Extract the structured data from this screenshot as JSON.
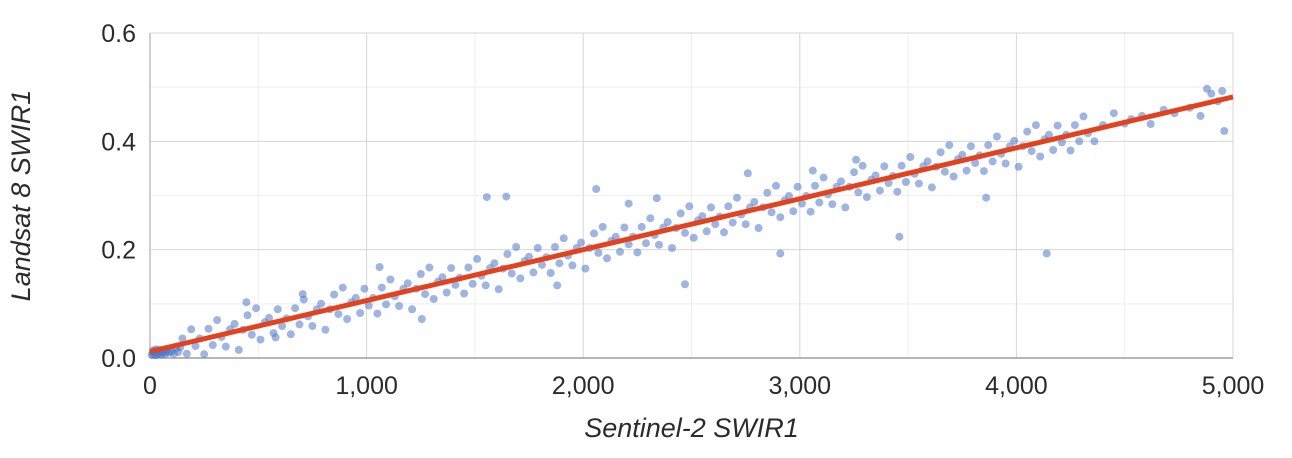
{
  "chart_data": {
    "type": "scatter",
    "title": "",
    "x_axis": {
      "title": "Sentinel-2 SWIR1",
      "min": 0,
      "max": 5000,
      "tick_values": [
        0,
        1000,
        2000,
        3000,
        4000,
        5000
      ],
      "tick_labels": [
        "0",
        "1,000",
        "2,000",
        "3,000",
        "4,000",
        "5,000"
      ],
      "minor_tick_values": [
        500,
        1500,
        2500,
        3500,
        4500
      ]
    },
    "y_axis": {
      "title": "Landsat 8 SWIR1",
      "min": 0,
      "max": 0.6,
      "tick_values": [
        0,
        0.2,
        0.4,
        0.6
      ],
      "tick_labels": [
        "0.0",
        "0.2",
        "0.4",
        "0.6"
      ],
      "minor_tick_values": [
        0.1,
        0.3,
        0.5
      ]
    },
    "grid": "on",
    "legend": "none",
    "colors": {
      "point": "#5079c9",
      "point_opacity": 0.55,
      "trend": "#e2431e",
      "grid_major": "#d6d6d6",
      "grid_minor": "#eeeeee",
      "axis_line": "#9e9e9e",
      "text": "#2b2b2b"
    },
    "trend_line": {
      "start": [
        0,
        0.012
      ],
      "end": [
        5000,
        0.482
      ]
    },
    "points": [
      [
        8,
        0.006
      ],
      [
        12,
        0.01
      ],
      [
        15,
        0.014
      ],
      [
        18,
        0.008
      ],
      [
        22,
        0.012
      ],
      [
        25,
        0.005
      ],
      [
        28,
        0.016
      ],
      [
        32,
        0.01
      ],
      [
        35,
        0.007
      ],
      [
        38,
        0.013
      ],
      [
        42,
        0.009
      ],
      [
        45,
        0.015
      ],
      [
        50,
        0.006
      ],
      [
        55,
        0.012
      ],
      [
        60,
        0.009
      ],
      [
        65,
        0.014
      ],
      [
        70,
        0.007
      ],
      [
        75,
        0.011
      ],
      [
        80,
        0.016
      ],
      [
        90,
        0.01
      ],
      [
        100,
        0.013
      ],
      [
        110,
        0.008
      ],
      [
        120,
        0.018
      ],
      [
        130,
        0.011
      ],
      [
        140,
        0.02
      ],
      [
        150,
        0.036
      ],
      [
        170,
        0.008
      ],
      [
        190,
        0.053
      ],
      [
        210,
        0.022
      ],
      [
        230,
        0.036
      ],
      [
        250,
        0.007
      ],
      [
        270,
        0.054
      ],
      [
        290,
        0.024
      ],
      [
        310,
        0.07
      ],
      [
        330,
        0.039
      ],
      [
        350,
        0.021
      ],
      [
        370,
        0.053
      ],
      [
        390,
        0.063
      ],
      [
        410,
        0.015
      ],
      [
        430,
        0.052
      ],
      [
        450,
        0.079
      ],
      [
        470,
        0.043
      ],
      [
        490,
        0.092
      ],
      [
        510,
        0.034
      ],
      [
        530,
        0.066
      ],
      [
        550,
        0.074
      ],
      [
        570,
        0.046
      ],
      [
        590,
        0.09
      ],
      [
        610,
        0.059
      ],
      [
        630,
        0.073
      ],
      [
        650,
        0.044
      ],
      [
        670,
        0.092
      ],
      [
        690,
        0.062
      ],
      [
        710,
        0.108
      ],
      [
        730,
        0.077
      ],
      [
        750,
        0.059
      ],
      [
        770,
        0.09
      ],
      [
        790,
        0.1
      ],
      [
        810,
        0.052
      ],
      [
        830,
        0.09
      ],
      [
        850,
        0.117
      ],
      [
        870,
        0.081
      ],
      [
        890,
        0.13
      ],
      [
        910,
        0.072
      ],
      [
        930,
        0.103
      ],
      [
        950,
        0.111
      ],
      [
        970,
        0.083
      ],
      [
        990,
        0.128
      ],
      [
        1010,
        0.097
      ],
      [
        1030,
        0.111
      ],
      [
        1050,
        0.082
      ],
      [
        1070,
        0.13
      ],
      [
        1090,
        0.099
      ],
      [
        1110,
        0.145
      ],
      [
        1130,
        0.114
      ],
      [
        1150,
        0.096
      ],
      [
        1170,
        0.128
      ],
      [
        1190,
        0.138
      ],
      [
        1210,
        0.09
      ],
      [
        1230,
        0.128
      ],
      [
        1250,
        0.155
      ],
      [
        1270,
        0.118
      ],
      [
        1290,
        0.167
      ],
      [
        1310,
        0.109
      ],
      [
        1330,
        0.141
      ],
      [
        1350,
        0.149
      ],
      [
        1370,
        0.121
      ],
      [
        1390,
        0.166
      ],
      [
        1410,
        0.135
      ],
      [
        1430,
        0.148
      ],
      [
        1450,
        0.119
      ],
      [
        1470,
        0.167
      ],
      [
        1490,
        0.137
      ],
      [
        1510,
        0.183
      ],
      [
        1530,
        0.152
      ],
      [
        1550,
        0.134
      ],
      [
        1570,
        0.166
      ],
      [
        1590,
        0.175
      ],
      [
        1610,
        0.127
      ],
      [
        1630,
        0.165
      ],
      [
        1650,
        0.192
      ],
      [
        1670,
        0.156
      ],
      [
        1690,
        0.205
      ],
      [
        1710,
        0.147
      ],
      [
        1730,
        0.179
      ],
      [
        1750,
        0.187
      ],
      [
        1770,
        0.158
      ],
      [
        1790,
        0.203
      ],
      [
        1810,
        0.172
      ],
      [
        1830,
        0.186
      ],
      [
        1850,
        0.157
      ],
      [
        1870,
        0.205
      ],
      [
        1890,
        0.175
      ],
      [
        1910,
        0.221
      ],
      [
        1930,
        0.189
      ],
      [
        1950,
        0.171
      ],
      [
        1970,
        0.203
      ],
      [
        1990,
        0.213
      ],
      [
        2010,
        0.165
      ],
      [
        2030,
        0.203
      ],
      [
        2050,
        0.23
      ],
      [
        2070,
        0.194
      ],
      [
        2090,
        0.242
      ],
      [
        2110,
        0.184
      ],
      [
        2130,
        0.216
      ],
      [
        2150,
        0.224
      ],
      [
        2170,
        0.196
      ],
      [
        2190,
        0.241
      ],
      [
        2210,
        0.21
      ],
      [
        2230,
        0.224
      ],
      [
        2250,
        0.195
      ],
      [
        2270,
        0.242
      ],
      [
        2290,
        0.212
      ],
      [
        2310,
        0.258
      ],
      [
        2330,
        0.227
      ],
      [
        2350,
        0.209
      ],
      [
        2370,
        0.241
      ],
      [
        2390,
        0.251
      ],
      [
        2410,
        0.203
      ],
      [
        2430,
        0.24
      ],
      [
        2450,
        0.267
      ],
      [
        2470,
        0.231
      ],
      [
        2490,
        0.28
      ],
      [
        2510,
        0.222
      ],
      [
        2530,
        0.254
      ],
      [
        2550,
        0.262
      ],
      [
        2570,
        0.234
      ],
      [
        2590,
        0.278
      ],
      [
        2610,
        0.247
      ],
      [
        2630,
        0.261
      ],
      [
        2650,
        0.232
      ],
      [
        2670,
        0.28
      ],
      [
        2690,
        0.25
      ],
      [
        2710,
        0.296
      ],
      [
        2730,
        0.265
      ],
      [
        2750,
        0.247
      ],
      [
        2770,
        0.278
      ],
      [
        2790,
        0.288
      ],
      [
        2810,
        0.24
      ],
      [
        2830,
        0.278
      ],
      [
        2850,
        0.305
      ],
      [
        2870,
        0.269
      ],
      [
        2890,
        0.318
      ],
      [
        2910,
        0.26
      ],
      [
        2930,
        0.291
      ],
      [
        2950,
        0.299
      ],
      [
        2970,
        0.271
      ],
      [
        2990,
        0.316
      ],
      [
        3010,
        0.285
      ],
      [
        3030,
        0.299
      ],
      [
        3050,
        0.27
      ],
      [
        3070,
        0.318
      ],
      [
        3090,
        0.287
      ],
      [
        3110,
        0.333
      ],
      [
        3130,
        0.302
      ],
      [
        3150,
        0.284
      ],
      [
        3170,
        0.316
      ],
      [
        3190,
        0.326
      ],
      [
        3210,
        0.278
      ],
      [
        3230,
        0.316
      ],
      [
        3250,
        0.343
      ],
      [
        3270,
        0.306
      ],
      [
        3290,
        0.355
      ],
      [
        3310,
        0.297
      ],
      [
        3330,
        0.329
      ],
      [
        3350,
        0.337
      ],
      [
        3370,
        0.309
      ],
      [
        3390,
        0.354
      ],
      [
        3410,
        0.323
      ],
      [
        3430,
        0.336
      ],
      [
        3450,
        0.307
      ],
      [
        3470,
        0.355
      ],
      [
        3490,
        0.325
      ],
      [
        3510,
        0.371
      ],
      [
        3530,
        0.34
      ],
      [
        3550,
        0.322
      ],
      [
        3570,
        0.354
      ],
      [
        3590,
        0.363
      ],
      [
        3610,
        0.315
      ],
      [
        3630,
        0.353
      ],
      [
        3650,
        0.38
      ],
      [
        3670,
        0.344
      ],
      [
        3690,
        0.393
      ],
      [
        3710,
        0.335
      ],
      [
        3730,
        0.367
      ],
      [
        3750,
        0.375
      ],
      [
        3770,
        0.346
      ],
      [
        3790,
        0.391
      ],
      [
        3810,
        0.36
      ],
      [
        3830,
        0.374
      ],
      [
        3850,
        0.345
      ],
      [
        3870,
        0.393
      ],
      [
        3890,
        0.363
      ],
      [
        3910,
        0.409
      ],
      [
        3930,
        0.377
      ],
      [
        3950,
        0.359
      ],
      [
        3970,
        0.391
      ],
      [
        3990,
        0.401
      ],
      [
        4010,
        0.353
      ],
      [
        4030,
        0.391
      ],
      [
        4050,
        0.418
      ],
      [
        4070,
        0.382
      ],
      [
        4090,
        0.43
      ],
      [
        4110,
        0.372
      ],
      [
        4130,
        0.404
      ],
      [
        4150,
        0.412
      ],
      [
        4170,
        0.384
      ],
      [
        4190,
        0.429
      ],
      [
        4210,
        0.398
      ],
      [
        4230,
        0.412
      ],
      [
        4250,
        0.383
      ],
      [
        4270,
        0.43
      ],
      [
        4290,
        0.4
      ],
      [
        4310,
        0.446
      ],
      [
        4330,
        0.415
      ],
      [
        4360,
        0.4
      ],
      [
        4400,
        0.43
      ],
      [
        4450,
        0.452
      ],
      [
        4500,
        0.433
      ],
      [
        4530,
        0.441
      ],
      [
        4580,
        0.447
      ],
      [
        4620,
        0.432
      ],
      [
        4680,
        0.458
      ],
      [
        4730,
        0.452
      ],
      [
        4800,
        0.462
      ],
      [
        4850,
        0.447
      ],
      [
        4880,
        0.497
      ],
      [
        4900,
        0.488
      ],
      [
        4930,
        0.474
      ],
      [
        4950,
        0.493
      ],
      [
        4960,
        0.419
      ],
      [
        445,
        0.103
      ],
      [
        580,
        0.038
      ],
      [
        705,
        0.118
      ],
      [
        1060,
        0.168
      ],
      [
        1255,
        0.072
      ],
      [
        1555,
        0.297
      ],
      [
        1645,
        0.298
      ],
      [
        1880,
        0.134
      ],
      [
        2060,
        0.312
      ],
      [
        2210,
        0.285
      ],
      [
        2340,
        0.295
      ],
      [
        2470,
        0.136
      ],
      [
        2760,
        0.341
      ],
      [
        2910,
        0.193
      ],
      [
        3060,
        0.346
      ],
      [
        3260,
        0.366
      ],
      [
        3460,
        0.224
      ],
      [
        3860,
        0.296
      ],
      [
        4140,
        0.193
      ]
    ]
  }
}
